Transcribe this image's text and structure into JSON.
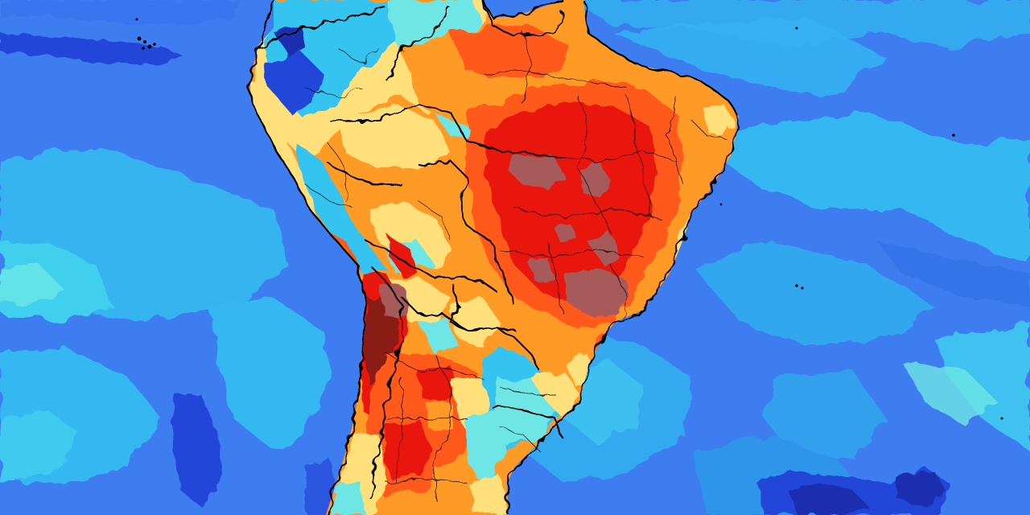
{
  "map": {
    "region": "South America",
    "projection": "equirectangular",
    "ocean_color": "#3d7df0",
    "color_scale": {
      "extreme": "#8a1a12",
      "very_high": "#e8170f",
      "high_alt": "#a65a5a",
      "warm": "#ff5a1a",
      "orange": "#ff9a26",
      "yellow": "#ffe07a",
      "cool": "#6ee6e6",
      "cyan": "#35c4f0",
      "blue": "#3d7df0",
      "deep_blue": "#2446d8",
      "navy": "#1a2fb0"
    },
    "features": {
      "countries": "country-borders",
      "states": "state-borders"
    }
  }
}
